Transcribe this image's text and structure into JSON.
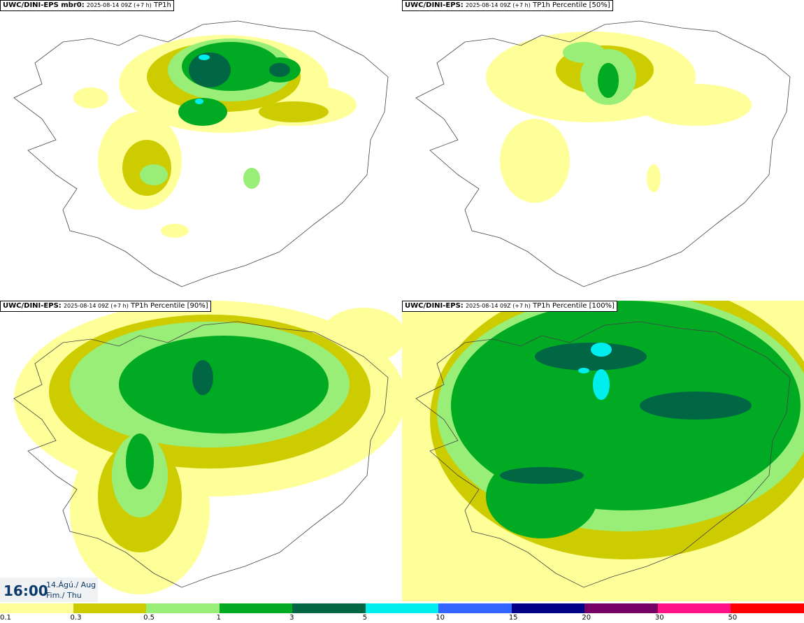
{
  "panels": [
    {
      "model": "UWC/DINI-EPS mbr0:",
      "run": "2025-08-14 09Z (+7 h)",
      "field": "TP1h"
    },
    {
      "model": "UWC/DINI-EPS:",
      "run": "2025-08-14 09Z (+7 h)",
      "field": "TP1h Percentile [50%]"
    },
    {
      "model": "UWC/DINI-EPS:",
      "run": "2025-08-14 09Z (+7 h)",
      "field": "TP1h Percentile [90%]"
    },
    {
      "model": "UWC/DINI-EPS:",
      "run": "2025-08-14 09Z (+7 h)",
      "field": "TP1h Percentile [100%]"
    }
  ],
  "valid_time": {
    "time": "16:00",
    "date_line": "14.Ágú./ Aug",
    "day_line": "Fim./ Thu"
  },
  "legend": {
    "labels": [
      "0.1",
      "0.3",
      "0.5",
      "1",
      "3",
      "5",
      "10",
      "15",
      "20",
      "30",
      "50"
    ],
    "colors": [
      "#ffff99",
      "#cccc00",
      "#99ee77",
      "#00aa22",
      "#006644",
      "#00eeee",
      "#3366ff",
      "#000088",
      "#770066",
      "#ff1188",
      "#ff0000"
    ]
  }
}
